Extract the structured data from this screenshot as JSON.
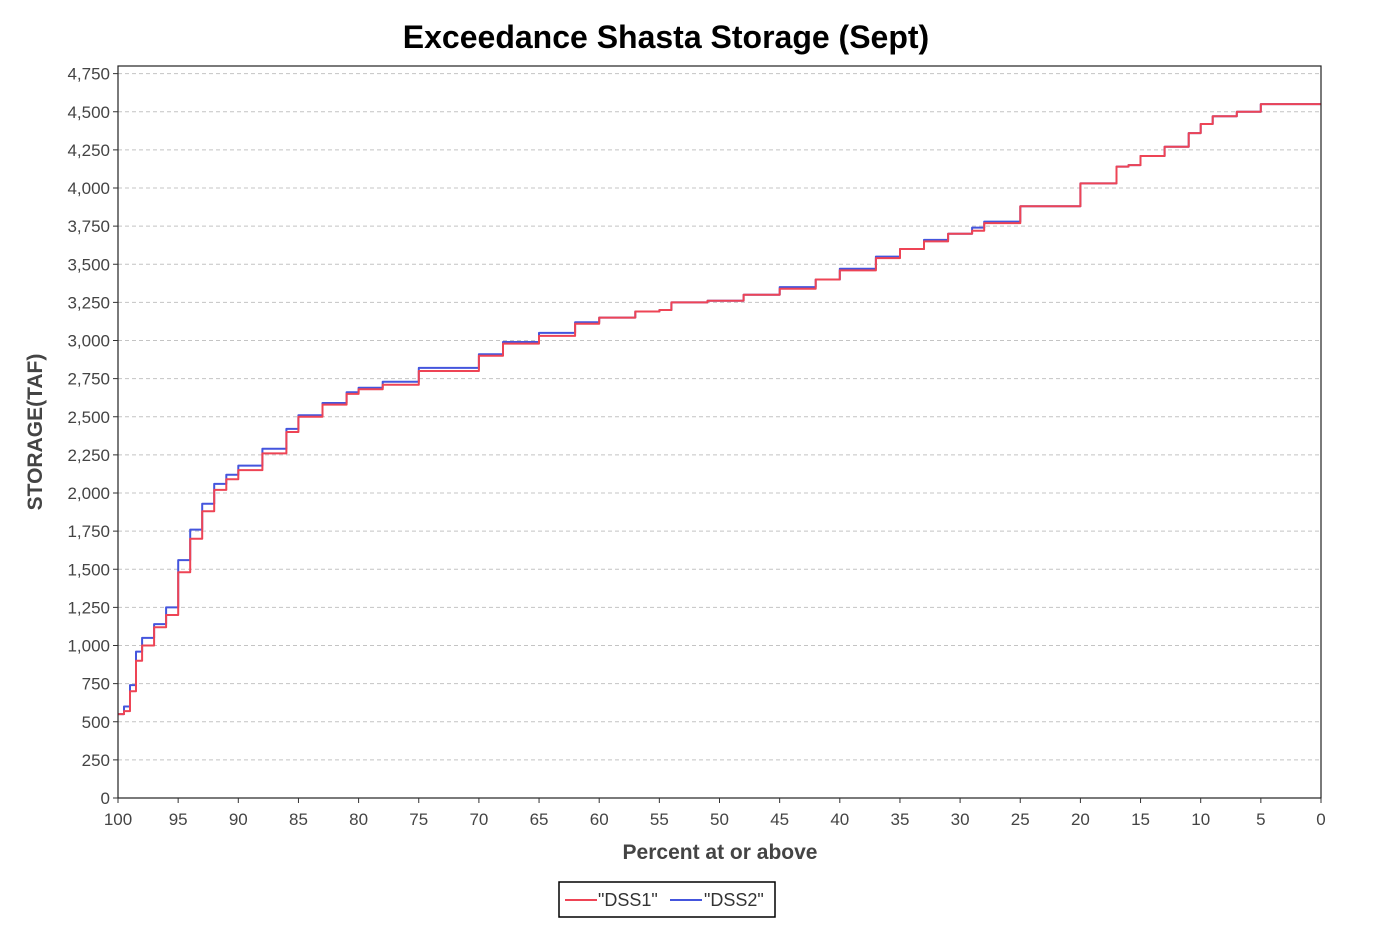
{
  "chart_data": {
    "type": "line",
    "title": "Exceedance Shasta Storage (Sept)",
    "xlabel": "Percent at or above",
    "ylabel": "STORAGE(TAF)",
    "xlim": [
      100,
      0
    ],
    "ylim": [
      0,
      4800
    ],
    "x_reversed": true,
    "grid": "horizontal dashed",
    "legend": "bottom-center",
    "xticks": [
      "100",
      "95",
      "90",
      "85",
      "80",
      "75",
      "70",
      "65",
      "60",
      "55",
      "50",
      "45",
      "40",
      "35",
      "30",
      "25",
      "20",
      "15",
      "10",
      "5",
      "0"
    ],
    "yticks": [
      "0",
      "250",
      "500",
      "750",
      "1,000",
      "1,250",
      "1,500",
      "1,750",
      "2,000",
      "2,250",
      "2,500",
      "2,750",
      "3,000",
      "3,250",
      "3,500",
      "3,750",
      "4,000",
      "4,250",
      "4,500",
      "4,750"
    ],
    "series": [
      {
        "name": "\"DSS1\"",
        "color": "#ee4455",
        "x": [
          100,
          99.5,
          99,
          98.5,
          98,
          97,
          96,
          95,
          94,
          93,
          92,
          91,
          90,
          88,
          86,
          85,
          83,
          81,
          80,
          78,
          75,
          70,
          68,
          65,
          62,
          60,
          57,
          55,
          54,
          51,
          48,
          45,
          42,
          40,
          37,
          35,
          33,
          31,
          30,
          29,
          28,
          25,
          20,
          17,
          16,
          15,
          13,
          11,
          10,
          9,
          7,
          6,
          5,
          0
        ],
        "y": [
          550,
          570,
          700,
          900,
          1000,
          1120,
          1200,
          1480,
          1700,
          1880,
          2020,
          2090,
          2150,
          2260,
          2400,
          2500,
          2580,
          2650,
          2680,
          2710,
          2800,
          2900,
          2980,
          3030,
          3110,
          3150,
          3190,
          3200,
          3250,
          3260,
          3300,
          3340,
          3400,
          3460,
          3540,
          3600,
          3650,
          3700,
          3700,
          3720,
          3770,
          3880,
          4030,
          4140,
          4150,
          4210,
          4270,
          4360,
          4420,
          4470,
          4500,
          4500,
          4550,
          4550
        ]
      },
      {
        "name": "\"DSS2\"",
        "color": "#4455dd",
        "x": [
          100,
          99.5,
          99,
          98.5,
          98,
          97,
          96,
          95,
          94,
          93,
          92,
          91,
          90,
          88,
          86,
          85,
          83,
          81,
          80,
          78,
          75,
          70,
          68,
          65,
          62,
          60,
          57,
          55,
          54,
          51,
          48,
          45,
          42,
          40,
          37,
          35,
          33,
          31,
          30,
          29,
          28,
          25,
          20,
          17,
          16,
          15,
          13,
          11,
          10,
          9,
          7,
          6,
          5,
          0
        ],
        "y": [
          550,
          600,
          740,
          960,
          1050,
          1140,
          1250,
          1560,
          1760,
          1930,
          2060,
          2120,
          2180,
          2290,
          2420,
          2510,
          2590,
          2660,
          2690,
          2730,
          2820,
          2910,
          2990,
          3050,
          3120,
          3150,
          3190,
          3200,
          3250,
          3260,
          3300,
          3350,
          3400,
          3470,
          3550,
          3600,
          3660,
          3700,
          3700,
          3740,
          3780,
          3880,
          4030,
          4140,
          4150,
          4210,
          4270,
          4360,
          4420,
          4470,
          4500,
          4500,
          4550,
          4550
        ]
      }
    ]
  }
}
